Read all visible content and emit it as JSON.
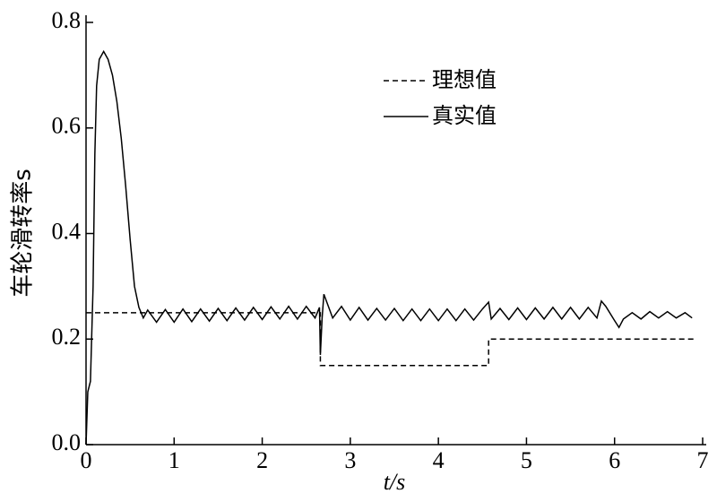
{
  "chart_data": {
    "type": "line",
    "x_label": "t/s",
    "y_label": "车轮滑转率s",
    "xlim": [
      0,
      7
    ],
    "xticks": [
      0,
      1,
      2,
      3,
      4,
      5,
      6,
      7
    ],
    "ylim": [
      0,
      0.8
    ],
    "yticks": [
      {
        "value": 0,
        "label": "0.0"
      },
      0.2,
      0.4,
      0.6,
      0.8
    ],
    "legend": "top-right",
    "series": [
      {
        "name": "理想值",
        "color": "#000000",
        "dash": "dashed",
        "x": [
          0,
          2.66,
          2.66,
          4.57,
          4.57,
          6.9
        ],
        "values": [
          0.25,
          0.25,
          0.15,
          0.15,
          0.2,
          0.2
        ]
      },
      {
        "name": "真实值",
        "color": "#000000",
        "dash": "solid",
        "x": [
          0,
          0.02,
          0.05,
          0.08,
          0.1,
          0.12,
          0.15,
          0.2,
          0.25,
          0.3,
          0.35,
          0.4,
          0.45,
          0.5,
          0.55,
          0.6,
          0.65,
          0.7,
          0.8,
          0.9,
          1.0,
          1.1,
          1.2,
          1.3,
          1.4,
          1.5,
          1.6,
          1.7,
          1.8,
          1.9,
          2.0,
          2.1,
          2.2,
          2.3,
          2.4,
          2.5,
          2.6,
          2.65,
          2.66,
          2.68,
          2.7,
          2.8,
          2.9,
          3.0,
          3.1,
          3.2,
          3.3,
          3.4,
          3.5,
          3.6,
          3.7,
          3.8,
          3.9,
          4.0,
          4.1,
          4.2,
          4.3,
          4.4,
          4.5,
          4.57,
          4.6,
          4.7,
          4.8,
          4.9,
          5.0,
          5.1,
          5.2,
          5.3,
          5.4,
          5.5,
          5.6,
          5.7,
          5.8,
          5.85,
          5.9,
          6.0,
          6.05,
          6.1,
          6.2,
          6.3,
          6.4,
          6.5,
          6.6,
          6.7,
          6.8,
          6.88
        ],
        "values": [
          0,
          0.1,
          0.12,
          0.3,
          0.55,
          0.68,
          0.73,
          0.745,
          0.73,
          0.7,
          0.65,
          0.58,
          0.49,
          0.39,
          0.3,
          0.26,
          0.24,
          0.255,
          0.232,
          0.256,
          0.232,
          0.257,
          0.233,
          0.257,
          0.234,
          0.258,
          0.235,
          0.259,
          0.236,
          0.26,
          0.237,
          0.261,
          0.238,
          0.262,
          0.238,
          0.262,
          0.24,
          0.26,
          0.17,
          0.24,
          0.285,
          0.24,
          0.262,
          0.236,
          0.26,
          0.236,
          0.258,
          0.236,
          0.258,
          0.235,
          0.257,
          0.235,
          0.257,
          0.235,
          0.257,
          0.235,
          0.257,
          0.236,
          0.257,
          0.27,
          0.238,
          0.258,
          0.237,
          0.259,
          0.237,
          0.259,
          0.238,
          0.26,
          0.238,
          0.26,
          0.238,
          0.26,
          0.24,
          0.272,
          0.262,
          0.235,
          0.222,
          0.238,
          0.25,
          0.238,
          0.252,
          0.24,
          0.252,
          0.24,
          0.25,
          0.24
        ]
      }
    ]
  }
}
